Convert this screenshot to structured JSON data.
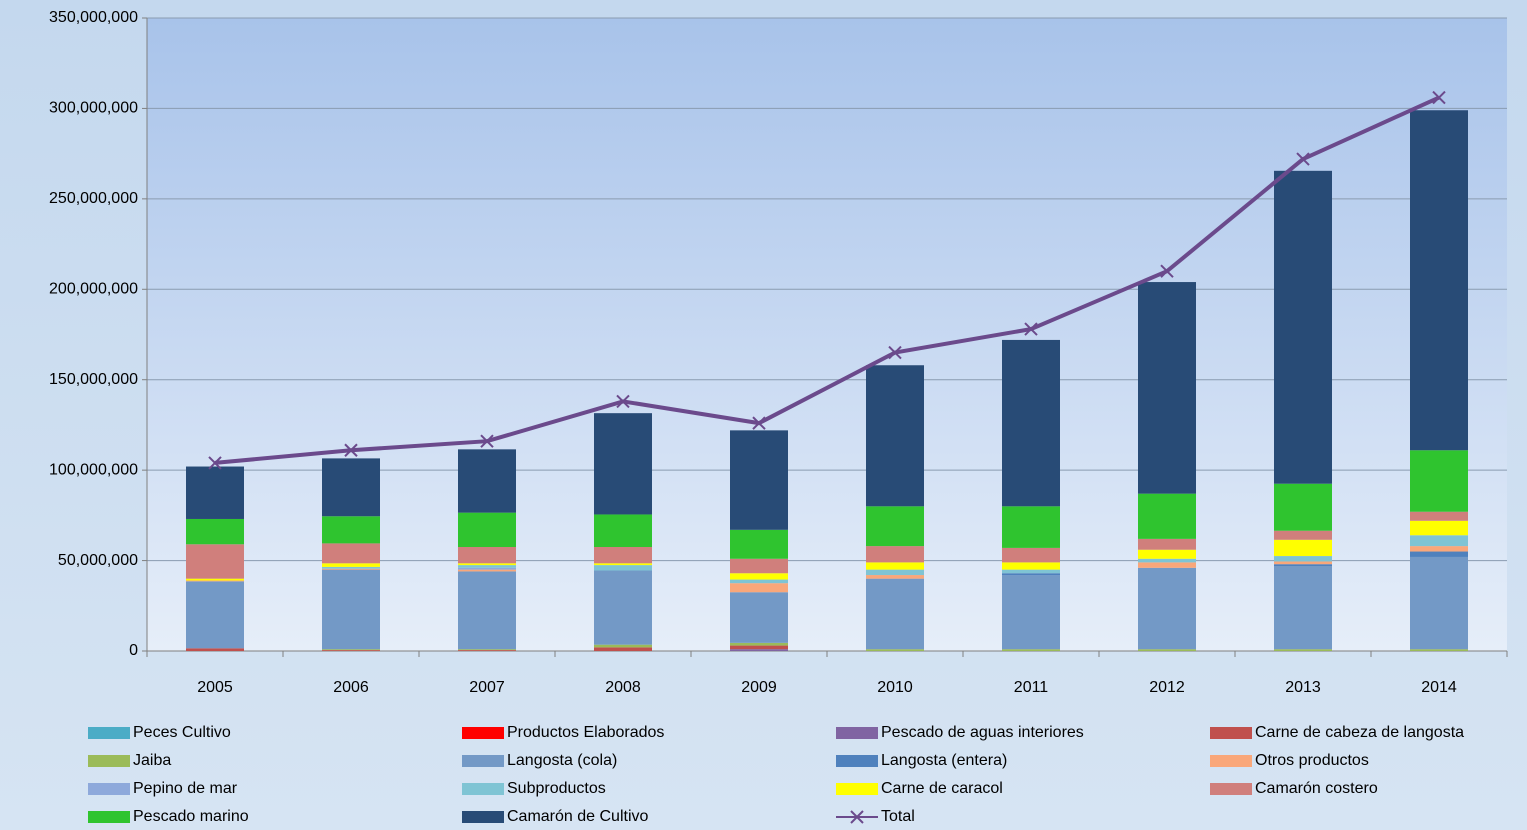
{
  "chart_data": {
    "type": "bar",
    "stacked": true,
    "categories": [
      "2005",
      "2006",
      "2007",
      "2008",
      "2009",
      "2010",
      "2011",
      "2012",
      "2013",
      "2014"
    ],
    "ylim": [
      0,
      350000000
    ],
    "yticks": [
      {
        "value": 0,
        "label": "0"
      },
      {
        "value": 50000000,
        "label": "50,000,000"
      },
      {
        "value": 100000000,
        "label": "100,000,000"
      },
      {
        "value": 150000000,
        "label": "150,000,000"
      },
      {
        "value": 200000000,
        "label": "200,000,000"
      },
      {
        "value": 250000000,
        "label": "250,000,000"
      },
      {
        "value": 300000000,
        "label": "300,000,000"
      },
      {
        "value": 350000000,
        "label": "350,000,000"
      }
    ],
    "grid": true,
    "legend": "bottom",
    "series": [
      {
        "name": "Peces Cultivo",
        "color": "#4bacc6",
        "values": [
          0,
          0,
          0,
          0,
          0,
          0,
          0,
          0,
          0,
          0
        ]
      },
      {
        "name": "Productos Elaborados",
        "color": "#ff0000",
        "values": [
          0,
          0,
          0,
          0,
          0,
          0,
          0,
          0,
          0,
          0
        ]
      },
      {
        "name": "Pescado de aguas interiores",
        "color": "#8064a2",
        "values": [
          0,
          0,
          0,
          0,
          1000000,
          0,
          0,
          0,
          0,
          0
        ]
      },
      {
        "name": "Carne de cabeza de langosta",
        "color": "#c0504d",
        "values": [
          1500000,
          500000,
          500000,
          2000000,
          2000000,
          0,
          0,
          0,
          0,
          0
        ]
      },
      {
        "name": "Jaiba",
        "color": "#9bbb59",
        "values": [
          0,
          500000,
          500000,
          1500000,
          1500000,
          1000000,
          1000000,
          1000000,
          1000000,
          1000000
        ]
      },
      {
        "name": "Langosta (cola)",
        "color": "#7399c6",
        "values": [
          37000000,
          44000000,
          43000000,
          41000000,
          28000000,
          39000000,
          41000000,
          45000000,
          46000000,
          51000000
        ]
      },
      {
        "name": "Langosta (entera)",
        "color": "#4f81bd",
        "values": [
          0,
          0,
          0,
          0,
          0,
          0,
          1000000,
          0,
          1000000,
          3000000
        ]
      },
      {
        "name": "Otros productos",
        "color": "#f9a77a",
        "values": [
          500000,
          500000,
          1000000,
          0,
          5000000,
          2000000,
          0,
          3000000,
          1500000,
          3000000
        ]
      },
      {
        "name": "Pepino de mar",
        "color": "#8ea9db",
        "values": [
          0,
          0,
          1000000,
          0,
          0,
          0,
          0,
          0,
          0,
          0
        ]
      },
      {
        "name": "Subproductos",
        "color": "#7fc4d4",
        "values": [
          0,
          1000000,
          1500000,
          3000000,
          2000000,
          3000000,
          2000000,
          2000000,
          3000000,
          6000000
        ]
      },
      {
        "name": "Carne de caracol",
        "color": "#ffff00",
        "values": [
          1000000,
          2000000,
          1000000,
          1000000,
          3500000,
          4000000,
          4000000,
          5000000,
          9000000,
          8000000
        ]
      },
      {
        "name": "Camarón costero",
        "color": "#d07f7c",
        "values": [
          19000000,
          11000000,
          9000000,
          9000000,
          8000000,
          9000000,
          8000000,
          6000000,
          5000000,
          5000000
        ]
      },
      {
        "name": "Pescado marino",
        "color": "#2fc42f",
        "values": [
          14000000,
          15000000,
          19000000,
          18000000,
          16000000,
          22000000,
          23000000,
          25000000,
          26000000,
          34000000
        ]
      },
      {
        "name": "Camarón de Cultivo",
        "color": "#284b76",
        "values": [
          29000000,
          32000000,
          35000000,
          56000000,
          55000000,
          78000000,
          92000000,
          117000000,
          173000000,
          188000000
        ]
      },
      {
        "name": "Total",
        "type": "line",
        "color": "#6b4a8c",
        "marker": "x",
        "values": [
          104000000,
          111000000,
          116000000,
          138000000,
          126000000,
          165000000,
          178000000,
          210000000,
          272000000,
          306000000
        ]
      }
    ]
  }
}
